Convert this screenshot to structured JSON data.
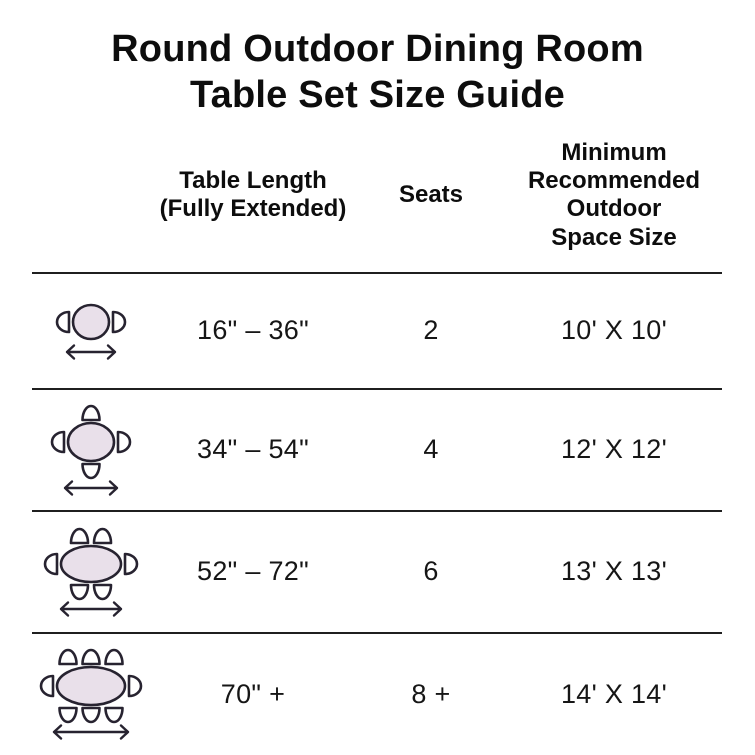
{
  "title": {
    "line1": "Round Outdoor Dining Room",
    "line2": "Table Set Size Guide"
  },
  "table": {
    "headers": {
      "icon": "",
      "length": "Table Length\n(Fully Extended)",
      "seats": "Seats",
      "space": "Minimum\nRecommended\nOutdoor\nSpace Size"
    },
    "rows": [
      {
        "icon": "round-table-2-chairs-top-view",
        "icon_chairs": 2,
        "length": "16\" – 36\"",
        "seats": "2",
        "space": "10' X 10'"
      },
      {
        "icon": "round-table-4-chairs-top-view",
        "icon_chairs": 4,
        "length": "34\" – 54\"",
        "seats": "4",
        "space": "12' X 12'"
      },
      {
        "icon": "round-table-6-chairs-top-view",
        "icon_chairs": 6,
        "length": "52\" – 72\"",
        "seats": "6",
        "space": "13' X 13'"
      },
      {
        "icon": "round-table-8-chairs-top-view",
        "icon_chairs": 8,
        "length": "70\" +",
        "seats": "8 +",
        "space": "14' X 14'"
      }
    ]
  },
  "chart_data": {
    "type": "table",
    "title": "Round Outdoor Dining Room Table Set Size Guide",
    "columns": [
      "Table Length (Fully Extended)",
      "Seats",
      "Minimum Recommended Outdoor Space Size"
    ],
    "rows": [
      [
        "16\" – 36\"",
        "2",
        "10' X 10'"
      ],
      [
        "34\" – 54\"",
        "4",
        "12' X 12'"
      ],
      [
        "52\" – 72\"",
        "6",
        "13' X 13'"
      ],
      [
        "70\" +",
        "8 +",
        "14' X 14'"
      ]
    ]
  },
  "colors": {
    "background": "#ffffff",
    "text": "#111111",
    "divider": "#1f1f1f",
    "icon_outline": "#272330",
    "table_fill": "#e9e0ea",
    "chair_fill": "#ffffff"
  }
}
